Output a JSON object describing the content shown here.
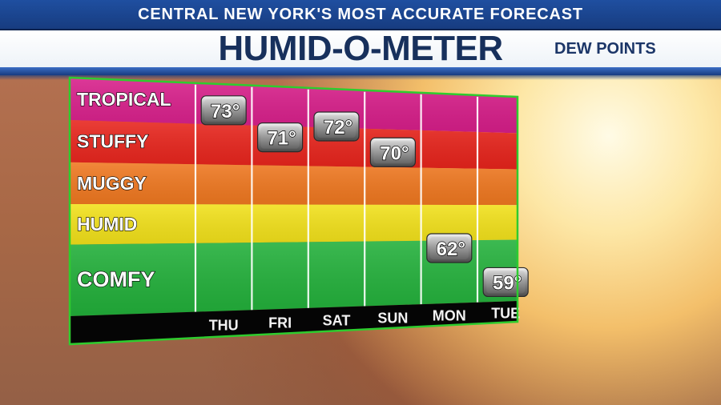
{
  "header": {
    "tagline": "CENTRAL NEW YORK'S MOST ACCURATE FORECAST",
    "title": "HUMID-O-METER",
    "subtitle": "DEW POINTS"
  },
  "chart_data": {
    "type": "scatter",
    "title": "HUMID-O-METER",
    "ylabel": "",
    "xlabel": "",
    "categories": [
      "THU",
      "FRI",
      "SAT",
      "SUN",
      "MON",
      "TUE"
    ],
    "values": [
      73,
      71,
      72,
      70,
      62,
      59
    ],
    "value_labels": [
      "73°",
      "71°",
      "72°",
      "70°",
      "62°",
      "59°"
    ],
    "ylim": [
      50,
      80
    ],
    "grid": true,
    "zones": [
      {
        "label": "TROPICAL",
        "color": "#d81e8a"
      },
      {
        "label": "STUFFY",
        "color": "#e8241c"
      },
      {
        "label": "MUGGY",
        "color": "#f07820"
      },
      {
        "label": "HUMID",
        "color": "#f2e11a"
      },
      {
        "label": "COMFY",
        "color": "#22b03a"
      }
    ]
  }
}
